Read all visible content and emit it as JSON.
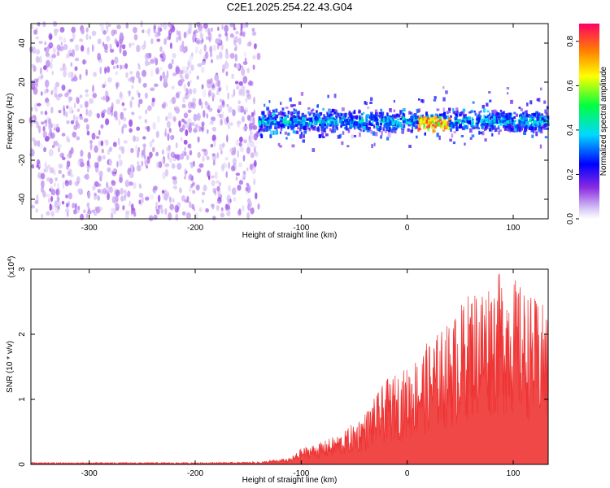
{
  "title": "C2E1.2025.254.22.43.G04",
  "chart_data": [
    {
      "type": "heatmap",
      "xlabel": "Height of straight line (km)",
      "ylabel": "Frequency (Hz)",
      "xlim": [
        -355,
        133
      ],
      "ylim": [
        -50,
        50
      ],
      "xticks": [
        -300,
        -200,
        -100,
        0,
        100
      ],
      "yticks": [
        -40,
        -20,
        0,
        20,
        40
      ],
      "colorbar": {
        "label": "Normalized spectral amplitude",
        "range": [
          0,
          0.88
        ],
        "ticks": [
          0.0,
          0.2,
          0.4,
          0.6,
          0.8
        ]
      },
      "regions": [
        {
          "x_range": [
            -355,
            -140
          ],
          "frequency_range": [
            -50,
            50
          ],
          "amplitude": 0.08
        },
        {
          "x_range": [
            -140,
            133
          ],
          "frequency_center": 0,
          "half_width_hz": 8,
          "amplitude": 0.3
        },
        {
          "x_range": [
            10,
            40
          ],
          "frequency_center": -2,
          "half_width_hz": 4,
          "amplitude": 0.75
        }
      ]
    },
    {
      "type": "line",
      "xlabel": "Height of straight line (km)",
      "ylabel": "SNR (10 * v/v)",
      "multiplier": "(x10^4)",
      "multiplier_base": "(x10",
      "multiplier_exp": "4",
      "multiplier_close": ")",
      "xlim": [
        -355,
        133
      ],
      "ylim": [
        0,
        3
      ],
      "xticks": [
        -300,
        -200,
        -100,
        0,
        100
      ],
      "yticks": [
        0,
        1,
        2,
        3
      ],
      "series": [
        {
          "color": "#ee3333",
          "envelope": [
            {
              "x": -355,
              "y": 0.03
            },
            {
              "x": -200,
              "y": 0.03
            },
            {
              "x": -140,
              "y": 0.04
            },
            {
              "x": -110,
              "y": 0.1
            },
            {
              "x": -100,
              "y": 0.25
            },
            {
              "x": -80,
              "y": 0.35
            },
            {
              "x": -60,
              "y": 0.5
            },
            {
              "x": -40,
              "y": 0.8
            },
            {
              "x": -20,
              "y": 1.3
            },
            {
              "x": 0,
              "y": 1.5
            },
            {
              "x": 20,
              "y": 1.9
            },
            {
              "x": 40,
              "y": 2.2
            },
            {
              "x": 60,
              "y": 2.7
            },
            {
              "x": 80,
              "y": 2.9
            },
            {
              "x": 95,
              "y": 3.0
            },
            {
              "x": 110,
              "y": 2.7
            },
            {
              "x": 133,
              "y": 2.4
            }
          ]
        }
      ]
    }
  ]
}
